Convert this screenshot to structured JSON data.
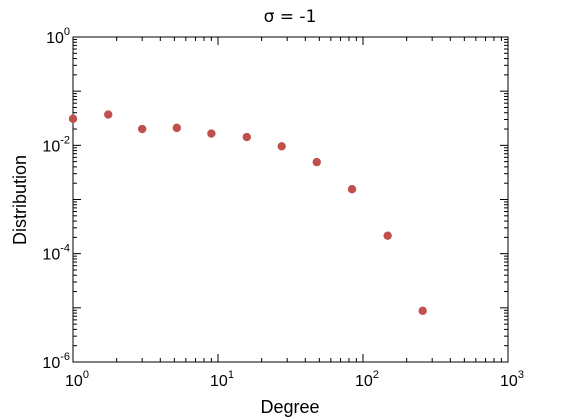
{
  "chart_data": {
    "type": "scatter",
    "title": "σ = -1",
    "xlabel": "Degree",
    "ylabel": "Distribution",
    "xscale": "log",
    "yscale": "log",
    "xlim": [
      1,
      1000
    ],
    "ylim": [
      1e-06,
      1
    ],
    "x_tick_labels": [
      {
        "base": "10",
        "exp": "0",
        "value": 1
      },
      {
        "base": "10",
        "exp": "1",
        "value": 10
      },
      {
        "base": "10",
        "exp": "2",
        "value": 100
      },
      {
        "base": "10",
        "exp": "3",
        "value": 1000
      }
    ],
    "y_tick_labels": [
      {
        "base": "10",
        "exp": "0",
        "value": 1
      },
      {
        "base": "10",
        "exp": "-2",
        "value": 0.01
      },
      {
        "base": "10",
        "exp": "-4",
        "value": 0.0001
      },
      {
        "base": "10",
        "exp": "-6",
        "value": 1e-06
      }
    ],
    "grid": false,
    "marker_color": "#c0504d",
    "x": [
      1.0,
      1.75,
      3.0,
      5.2,
      9.0,
      15.8,
      27.5,
      48.0,
      84.0,
      148.0,
      258.0
    ],
    "y": [
      0.031,
      0.037,
      0.02,
      0.021,
      0.0165,
      0.0142,
      0.0096,
      0.0049,
      0.00155,
      0.000215,
      8.8e-06
    ]
  }
}
